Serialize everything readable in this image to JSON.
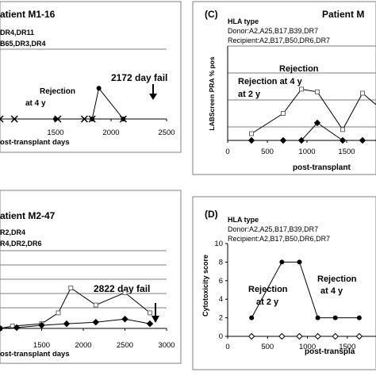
{
  "panels": {
    "A": {
      "title": "atient M1-16",
      "hla_lines": [
        "DR4,DR11",
        "B65,DR3,DR4"
      ],
      "fail_note": "2172 day fail",
      "rejection_note": "Rejection",
      "rejection_time": "at 4 y",
      "xlabel": "ost-transplant days",
      "xticks": [
        "1500",
        "2000",
        "2500"
      ]
    },
    "B": {
      "title": "atient M2-47",
      "hla_lines": [
        "R2,DR4",
        "R4,DR2,DR6"
      ],
      "fail_note": "2822 day fail",
      "xlabel": "ost-transplant days",
      "xticks": [
        "1500",
        "2000",
        "2500",
        "3000"
      ]
    },
    "C": {
      "letter": "(C)",
      "title": "Patient M",
      "hla_heading": "HLA type",
      "donor": "Donor:A2,A25,B17,B39,DR7",
      "recipient": "Recipient:A2,B17,B50,DR6,DR7",
      "rejection_bar": "Rejection",
      "rejection_4y": "Rejection at 4 y",
      "rejection_2y": "at 2 y",
      "ylabel": "LABScreen PRA % pos",
      "xlabel": "post-transplant",
      "xticks": [
        "0",
        "500",
        "1000",
        "1500",
        "2"
      ]
    },
    "D": {
      "letter": "(D)",
      "hla_heading": "HLA type",
      "donor": "Donor:A2,A25,B17,B39,DR7",
      "recipient": "Recipient:A2,B17,B50,DR6,DR7",
      "rejection_2y_a": "Rejection",
      "rejection_2y_b": "at 2 y",
      "rejection_4y_a": "Rejection",
      "rejection_4y_b": "at 4 y",
      "ylabel": "Cytotoxicity score",
      "xlabel": "post-transpla",
      "yticks": [
        "0",
        "2",
        "4",
        "6",
        "8",
        "10"
      ],
      "xticks": [
        "0",
        "500",
        "1000",
        "1500"
      ]
    }
  },
  "chart_data": [
    {
      "panel": "A",
      "type": "line",
      "xlim": [
        1000,
        2500
      ],
      "series": [
        {
          "marker": "x",
          "x": [
            1000,
            1130,
            1520,
            1760,
            1830,
            2110
          ],
          "y": [
            0,
            0,
            0,
            0,
            0,
            0
          ]
        },
        {
          "marker": "circle",
          "x": [
            1500,
            1830,
            1890,
            2110
          ],
          "y": [
            0,
            0,
            2.2,
            0
          ]
        }
      ]
    },
    {
      "panel": "B",
      "type": "line",
      "xlim": [
        1000,
        3000
      ],
      "series": [
        {
          "marker": "square",
          "x": [
            1000,
            1150,
            1500,
            1700,
            1850,
            2150,
            2500,
            2800
          ],
          "y": [
            0,
            0.15,
            0.3,
            1.0,
            2.6,
            1.5,
            2.3,
            1.0
          ]
        },
        {
          "marker": "diamond",
          "x": [
            1000,
            1200,
            1500,
            1800,
            2150,
            2500,
            2800
          ],
          "y": [
            0,
            0.05,
            0.2,
            0.3,
            0.4,
            0.6,
            0.3
          ]
        }
      ]
    },
    {
      "panel": "C",
      "type": "line",
      "xlim": [
        0,
        2000
      ],
      "series": [
        {
          "marker": "square",
          "x": [
            300,
            700,
            930,
            1130,
            1450,
            1700,
            1900
          ],
          "y": [
            5,
            20,
            38,
            36,
            8,
            35,
            25
          ]
        },
        {
          "marker": "diamond",
          "x": [
            300,
            700,
            930,
            1130,
            1450,
            1700,
            1900
          ],
          "y": [
            0,
            0,
            0,
            13,
            0,
            0,
            0
          ]
        }
      ]
    },
    {
      "panel": "D",
      "type": "line",
      "xlim": [
        0,
        1850
      ],
      "ylim": [
        0,
        10
      ],
      "series": [
        {
          "marker": "circle",
          "x": [
            300,
            680,
            900,
            1130,
            1350,
            1650
          ],
          "y": [
            2,
            8,
            8,
            2,
            2,
            2
          ]
        },
        {
          "marker": "diamond",
          "x": [
            300,
            680,
            900,
            1130,
            1350,
            1650
          ],
          "y": [
            0,
            0,
            0,
            0,
            0,
            0
          ]
        }
      ]
    }
  ]
}
